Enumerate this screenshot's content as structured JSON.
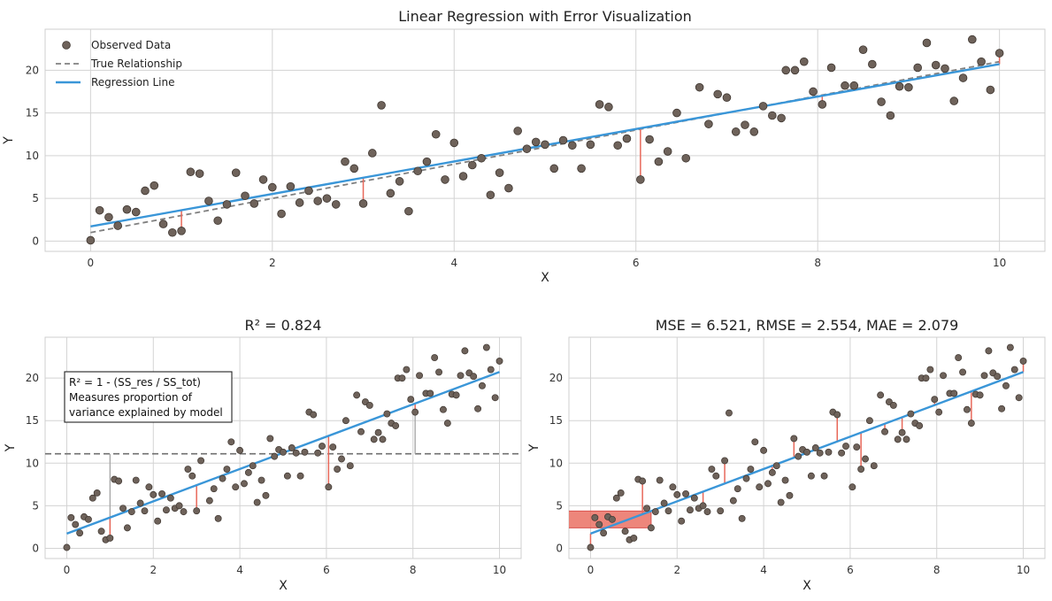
{
  "chart_data": [
    {
      "id": "top",
      "type": "scatter",
      "title": "Linear Regression with Error Visualization",
      "xlabel": "X",
      "ylabel": "Y",
      "xlim": [
        -0.5,
        10.5
      ],
      "ylim": [
        -1.2,
        24.8
      ],
      "xticks": [
        0,
        2,
        4,
        6,
        8,
        10
      ],
      "yticks": [
        0,
        5,
        10,
        15,
        20
      ],
      "grid": true,
      "legend_position": "top-left",
      "legend": [
        "Observed Data",
        "True Relationship",
        "Regression Line"
      ],
      "regression": {
        "intercept": 1.72,
        "slope": 1.9
      },
      "true_relationship": {
        "intercept": 1.0,
        "slope": 2.0
      },
      "error_lines_at_x": [
        1.0,
        3.0,
        6.05,
        8.05,
        10.0
      ]
    },
    {
      "id": "bottom-left",
      "type": "scatter",
      "title": "R² = 0.824",
      "xlabel": "X",
      "ylabel": "Y",
      "xlim": [
        -0.5,
        10.5
      ],
      "ylim": [
        -1.2,
        24.8
      ],
      "xticks": [
        0,
        2,
        4,
        6,
        8,
        10
      ],
      "yticks": [
        0,
        5,
        10,
        15,
        20
      ],
      "grid": true,
      "mean_y": 11.1,
      "annotation": [
        "R² = 1 - (SS_res / SS_tot)",
        "Measures proportion of",
        "variance explained by model"
      ],
      "residual_lines_at_x": [
        1.0,
        3.0,
        6.05,
        8.05
      ],
      "total_lines_at_x": [
        1.0,
        8.05
      ]
    },
    {
      "id": "bottom-right",
      "type": "scatter",
      "title": "MSE = 6.521, RMSE = 2.554, MAE = 2.079",
      "xlabel": "X",
      "ylabel": "Y",
      "xlim": [
        -0.5,
        10.5
      ],
      "ylim": [
        -1.2,
        24.8
      ],
      "xticks": [
        0,
        2,
        4,
        6,
        8,
        10
      ],
      "yticks": [
        0,
        5,
        10,
        15,
        20
      ],
      "grid": true,
      "error_lines_at_x": [
        0.0,
        1.2,
        2.6,
        3.1,
        4.2,
        4.65,
        5.75,
        6.25,
        6.8,
        7.25,
        7.9,
        8.8,
        10.0
      ],
      "squared_error_at_x": 1.4
    }
  ],
  "points": [
    [
      0.0,
      0.1
    ],
    [
      0.1,
      3.6
    ],
    [
      0.2,
      2.8
    ],
    [
      0.3,
      1.8
    ],
    [
      0.4,
      3.7
    ],
    [
      0.5,
      3.4
    ],
    [
      0.6,
      5.9
    ],
    [
      0.7,
      6.5
    ],
    [
      0.8,
      2.0
    ],
    [
      0.9,
      1.0
    ],
    [
      1.0,
      1.2
    ],
    [
      1.1,
      8.1
    ],
    [
      1.2,
      7.9
    ],
    [
      1.3,
      4.7
    ],
    [
      1.4,
      2.4
    ],
    [
      1.5,
      4.3
    ],
    [
      1.6,
      8.0
    ],
    [
      1.7,
      5.3
    ],
    [
      1.8,
      4.4
    ],
    [
      1.9,
      7.2
    ],
    [
      2.0,
      6.3
    ],
    [
      2.1,
      3.2
    ],
    [
      2.2,
      6.4
    ],
    [
      2.3,
      4.5
    ],
    [
      2.4,
      5.9
    ],
    [
      2.5,
      4.7
    ],
    [
      2.6,
      5.0
    ],
    [
      2.7,
      4.3
    ],
    [
      2.8,
      9.3
    ],
    [
      2.9,
      8.5
    ],
    [
      3.0,
      4.4
    ],
    [
      3.1,
      10.3
    ],
    [
      3.2,
      15.9
    ],
    [
      3.3,
      5.6
    ],
    [
      3.4,
      7.0
    ],
    [
      3.5,
      3.5
    ],
    [
      3.6,
      8.2
    ],
    [
      3.7,
      9.3
    ],
    [
      3.8,
      12.5
    ],
    [
      3.9,
      7.2
    ],
    [
      4.0,
      11.5
    ],
    [
      4.1,
      7.6
    ],
    [
      4.2,
      8.9
    ],
    [
      4.3,
      9.7
    ],
    [
      4.4,
      5.4
    ],
    [
      4.5,
      8.0
    ],
    [
      4.6,
      6.2
    ],
    [
      4.7,
      12.9
    ],
    [
      4.8,
      10.8
    ],
    [
      4.9,
      11.6
    ],
    [
      5.0,
      11.3
    ],
    [
      5.1,
      8.5
    ],
    [
      5.2,
      11.8
    ],
    [
      5.3,
      11.2
    ],
    [
      5.4,
      8.5
    ],
    [
      5.5,
      11.3
    ],
    [
      5.6,
      16.0
    ],
    [
      5.7,
      15.7
    ],
    [
      5.8,
      11.2
    ],
    [
      5.9,
      12.0
    ],
    [
      6.05,
      7.2
    ],
    [
      6.15,
      11.9
    ],
    [
      6.25,
      9.3
    ],
    [
      6.35,
      10.5
    ],
    [
      6.45,
      15.0
    ],
    [
      6.55,
      9.7
    ],
    [
      6.7,
      18.0
    ],
    [
      6.8,
      13.7
    ],
    [
      6.9,
      17.2
    ],
    [
      7.0,
      16.8
    ],
    [
      7.1,
      12.8
    ],
    [
      7.2,
      13.6
    ],
    [
      7.3,
      12.8
    ],
    [
      7.4,
      15.8
    ],
    [
      7.5,
      14.7
    ],
    [
      7.6,
      14.4
    ],
    [
      7.65,
      20.0
    ],
    [
      7.75,
      20.0
    ],
    [
      7.85,
      21.0
    ],
    [
      7.95,
      17.5
    ],
    [
      8.05,
      16.0
    ],
    [
      8.15,
      20.3
    ],
    [
      8.3,
      18.2
    ],
    [
      8.4,
      18.2
    ],
    [
      8.5,
      22.4
    ],
    [
      8.6,
      20.7
    ],
    [
      8.7,
      16.3
    ],
    [
      8.8,
      14.7
    ],
    [
      8.9,
      18.1
    ],
    [
      9.0,
      18.0
    ],
    [
      9.1,
      20.3
    ],
    [
      9.2,
      23.2
    ],
    [
      9.3,
      20.6
    ],
    [
      9.4,
      20.2
    ],
    [
      9.5,
      16.4
    ],
    [
      9.6,
      19.1
    ],
    [
      9.7,
      23.6
    ],
    [
      9.8,
      21.0
    ],
    [
      9.9,
      17.7
    ],
    [
      10.0,
      22.0
    ]
  ]
}
